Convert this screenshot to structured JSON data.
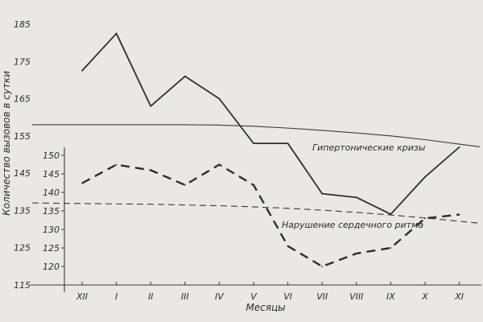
{
  "chart_data": {
    "type": "line",
    "xlabel": "Месяцы",
    "ylabel": "Количество вызовов в сутки",
    "categories": [
      "XII",
      "I",
      "II",
      "III",
      "IV",
      "V",
      "VI",
      "VII",
      "VIII",
      "IX",
      "X",
      "XI"
    ],
    "axes": {
      "left": {
        "ticks": [
          115,
          125,
          135,
          145,
          155,
          165,
          175,
          185
        ],
        "ylim": [
          115,
          186
        ]
      },
      "inner": {
        "ticks": [
          120,
          125,
          130,
          135,
          140,
          145,
          150
        ],
        "ylim": [
          117,
          152
        ]
      }
    },
    "series": [
      {
        "name": "Гипертонические кризы",
        "axis": "left",
        "style": "solid",
        "values": [
          172.5,
          182.5,
          163,
          171,
          165,
          153,
          153,
          139.5,
          138.5,
          134,
          144,
          152
        ]
      },
      {
        "name": "Нарушение сердечного ритма",
        "axis": "inner",
        "style": "dashed",
        "values": [
          142.5,
          147.5,
          146,
          142,
          147.5,
          142,
          125.5,
          120,
          123.5,
          125,
          133,
          134
        ]
      }
    ],
    "trends": [
      {
        "axis": "left",
        "style": "solid",
        "values": [
          158,
          158,
          158,
          158,
          157.9,
          157.6,
          157.1,
          156.5,
          155.8,
          155,
          154,
          152.8
        ]
      },
      {
        "axis": "inner",
        "style": "dashed",
        "values": [
          137,
          136.9,
          136.8,
          136.6,
          136.4,
          136.1,
          135.7,
          135.2,
          134.6,
          133.9,
          133.1,
          132.2
        ]
      }
    ],
    "legend": "inline",
    "grid": false
  }
}
